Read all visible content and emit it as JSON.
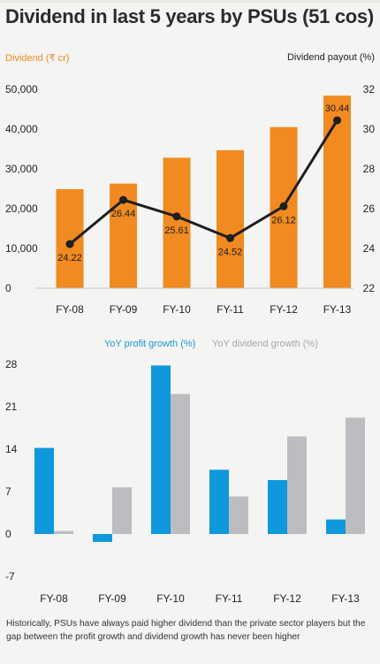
{
  "title": "Dividend in last 5 years by PSUs (51 cos)",
  "caption": "Historically, PSUs have always paid higher dividend than the private sector players but the gap between the profit growth and dividend growth has never been higher",
  "colors": {
    "orange": "#f08a21",
    "line": "#1f1f1f",
    "blue": "#0f98dc",
    "grey": "#bcbdc1"
  },
  "chart_data": [
    {
      "type": "bar",
      "title": "",
      "categories": [
        "FY-08",
        "FY-09",
        "FY-10",
        "FY-11",
        "FY-12",
        "FY-13"
      ],
      "ylabel": "Dividend (₹ cr)",
      "ylim": [
        0,
        50000
      ],
      "yticks": [
        0,
        10000,
        20000,
        30000,
        40000,
        50000
      ],
      "ytick_labels": [
        "0",
        "10,000",
        "20,000",
        "30,000",
        "40,000",
        "50,000"
      ],
      "y2label": "Dividend payout (%)",
      "y2lim": [
        22,
        32
      ],
      "y2ticks": [
        22,
        24,
        26,
        28,
        30,
        32
      ],
      "series": [
        {
          "name": "Dividend (₹ cr)",
          "type": "bar",
          "axis": "left",
          "values": [
            24900,
            26300,
            32800,
            34700,
            40500,
            48400
          ]
        },
        {
          "name": "Dividend payout (%)",
          "type": "line",
          "axis": "right",
          "values": [
            24.22,
            26.44,
            25.61,
            24.52,
            26.12,
            30.44
          ],
          "labels": [
            "24.22",
            "26.44",
            "25.61",
            "24.52",
            "26.12",
            "30.44"
          ]
        }
      ]
    },
    {
      "type": "bar",
      "title": "",
      "categories": [
        "FY-08",
        "FY-09",
        "FY-10",
        "FY-11",
        "FY-12",
        "FY-13"
      ],
      "ylim": [
        -7,
        28
      ],
      "yticks": [
        -7,
        0,
        7,
        14,
        21,
        28
      ],
      "series": [
        {
          "name": "YoY profit growth (%)",
          "values": [
            14.2,
            -1.3,
            27.8,
            10.6,
            8.9,
            2.4
          ]
        },
        {
          "name": "YoY dividend growth (%)",
          "values": [
            0.5,
            7.7,
            23.1,
            6.2,
            16.1,
            19.2
          ]
        }
      ]
    }
  ]
}
